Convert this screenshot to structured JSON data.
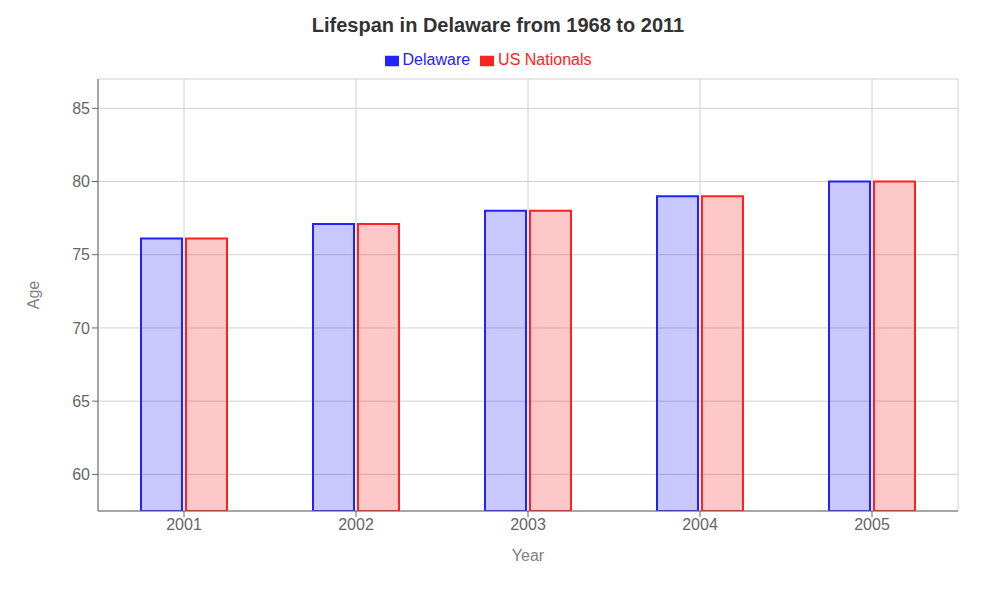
{
  "chart_data": {
    "type": "bar",
    "title": "Lifespan in Delaware from 1968 to 2011",
    "x_label": "Year",
    "y_label": "Age",
    "categories": [
      "2001",
      "2002",
      "2003",
      "2004",
      "2005"
    ],
    "series": [
      {
        "name": "Delaware",
        "color": "#2222ff",
        "values": [
          76.1,
          77.1,
          78.0,
          79.0,
          80.0
        ]
      },
      {
        "name": "US Nationals",
        "color": "#ff2222",
        "values": [
          76.1,
          77.1,
          78.0,
          79.0,
          80.0
        ]
      }
    ],
    "ylim": [
      57.5,
      87
    ],
    "yticks": [
      60,
      65,
      70,
      75,
      80,
      85
    ],
    "grid": true,
    "legend": "top"
  }
}
